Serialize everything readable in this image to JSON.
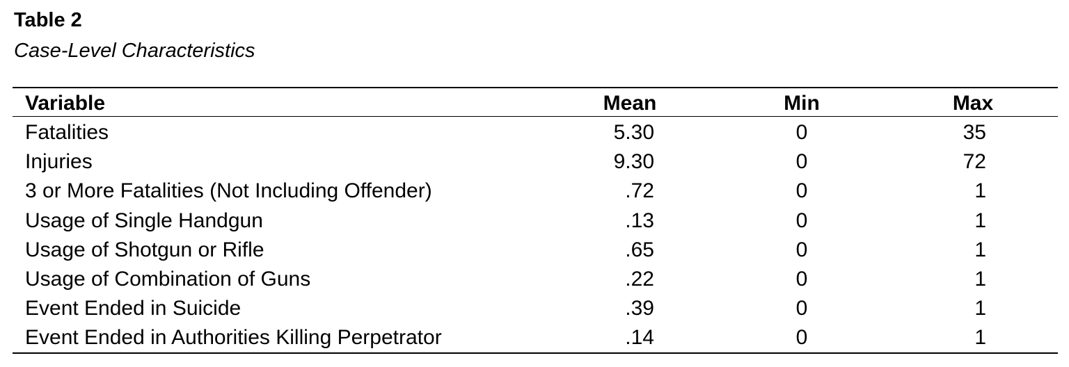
{
  "header": {
    "title": "Table 2",
    "subtitle": "Case-Level Characteristics"
  },
  "table": {
    "columns": [
      "Variable",
      "Mean",
      "Min",
      "Max"
    ],
    "rows": [
      [
        "Fatalities",
        "5.30",
        "0",
        "35"
      ],
      [
        "Injuries",
        "9.30",
        "0",
        "72"
      ],
      [
        "3 or More Fatalities (Not Including Offender)",
        ".72",
        "0",
        "1"
      ],
      [
        "Usage of Single Handgun",
        ".13",
        "0",
        "1"
      ],
      [
        "Usage of Shotgun or Rifle",
        ".65",
        "0",
        "1"
      ],
      [
        "Usage of Combination of Guns",
        ".22",
        "0",
        "1"
      ],
      [
        "Event Ended in Suicide",
        ".39",
        "0",
        "1"
      ],
      [
        "Event Ended in Authorities Killing Perpetrator",
        ".14",
        "0",
        "1"
      ]
    ]
  }
}
